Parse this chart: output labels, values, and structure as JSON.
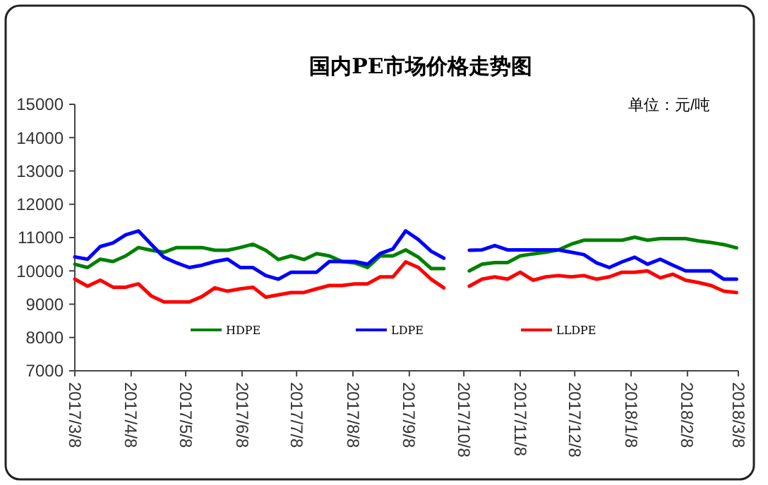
{
  "chart_data": {
    "type": "line",
    "title": "国内PE市场价格走势图",
    "annotations": [
      "单位：元/吨"
    ],
    "x": [
      "2017-03-08",
      "2017-03-15",
      "2017-03-22",
      "2017-03-29",
      "2017-04-05",
      "2017-04-12",
      "2017-04-19",
      "2017-04-26",
      "2017-05-03",
      "2017-05-10",
      "2017-05-17",
      "2017-05-24",
      "2017-05-31",
      "2017-06-07",
      "2017-06-14",
      "2017-06-21",
      "2017-06-28",
      "2017-07-05",
      "2017-07-12",
      "2017-07-19",
      "2017-07-26",
      "2017-08-02",
      "2017-08-09",
      "2017-08-16",
      "2017-08-23",
      "2017-08-30",
      "2017-09-06",
      "2017-09-13",
      "2017-09-20",
      "2017-09-27",
      "2017-10-04",
      "2017-10-11",
      "2017-10-18",
      "2017-10-25",
      "2017-11-01",
      "2017-11-08",
      "2017-11-15",
      "2017-11-22",
      "2017-11-29",
      "2017-12-06",
      "2017-12-13",
      "2017-12-20",
      "2017-12-27",
      "2018-01-03",
      "2018-01-10",
      "2018-01-17",
      "2018-01-24",
      "2018-01-31",
      "2018-02-07",
      "2018-02-14",
      "2018-02-21",
      "2018-02-28",
      "2018-03-07"
    ],
    "series": [
      {
        "name": "HDPE",
        "color": "#008000",
        "values": [
          10200,
          10100,
          10350,
          10280,
          10450,
          10700,
          10620,
          10560,
          10700,
          10700,
          10700,
          10620,
          10620,
          10700,
          10800,
          10620,
          10340,
          10450,
          10340,
          10520,
          10450,
          10280,
          10240,
          10100,
          10450,
          10450,
          10630,
          10410,
          10070,
          10070,
          null,
          10000,
          10200,
          10250,
          10250,
          10450,
          10510,
          10560,
          10630,
          10800,
          10920,
          10920,
          10920,
          10920,
          11010,
          10920,
          10970,
          10970,
          10970,
          10900,
          10850,
          10790,
          10690
        ]
      },
      {
        "name": "LDPE",
        "color": "#0000ff",
        "values": [
          10420,
          10350,
          10730,
          10840,
          11080,
          11200,
          10800,
          10410,
          10240,
          10100,
          10170,
          10280,
          10350,
          10100,
          10100,
          9860,
          9750,
          9960,
          9960,
          9960,
          10280,
          10280,
          10280,
          10200,
          10520,
          10660,
          11200,
          10940,
          10590,
          10380,
          null,
          10620,
          10630,
          10760,
          10630,
          10630,
          10630,
          10630,
          10630,
          10560,
          10490,
          10240,
          10100,
          10270,
          10410,
          10200,
          10350,
          10170,
          10000,
          10000,
          10000,
          9750,
          9750
        ]
      },
      {
        "name": "LLDPE",
        "color": "#ff0000",
        "values": [
          9750,
          9540,
          9720,
          9510,
          9510,
          9610,
          9250,
          9070,
          9070,
          9070,
          9230,
          9490,
          9390,
          9460,
          9510,
          9210,
          9280,
          9350,
          9350,
          9460,
          9560,
          9560,
          9610,
          9610,
          9820,
          9820,
          10270,
          10100,
          9750,
          9490,
          null,
          9540,
          9750,
          9820,
          9750,
          9960,
          9720,
          9820,
          9860,
          9820,
          9860,
          9750,
          9820,
          9960,
          9960,
          10000,
          9790,
          9900,
          9720,
          9650,
          9560,
          9390,
          9350
        ]
      }
    ],
    "xlim": [
      "2017-03-08",
      "2018-03-08"
    ],
    "xticks": [
      {
        "value": "2017-03-08",
        "label": "2017/3/8"
      },
      {
        "value": "2017-04-08",
        "label": "2017/4/8"
      },
      {
        "value": "2017-05-08",
        "label": "2017/5/8"
      },
      {
        "value": "2017-06-08",
        "label": "2017/6/8"
      },
      {
        "value": "2017-07-08",
        "label": "2017/7/8"
      },
      {
        "value": "2017-08-08",
        "label": "2017/8/8"
      },
      {
        "value": "2017-09-08",
        "label": "2017/9/8"
      },
      {
        "value": "2017-10-08",
        "label": "2017/10/8"
      },
      {
        "value": "2017-11-08",
        "label": "2017/11/8"
      },
      {
        "value": "2017-12-08",
        "label": "2017/12/8"
      },
      {
        "value": "2018-01-08",
        "label": "2018/1/8"
      },
      {
        "value": "2018-02-08",
        "label": "2018/2/8"
      },
      {
        "value": "2018-03-08",
        "label": "2018/3/8"
      }
    ],
    "ylim": [
      7000,
      15000
    ],
    "yticks": [
      7000,
      8000,
      9000,
      10000,
      11000,
      12000,
      13000,
      14000,
      15000
    ],
    "grid": false,
    "legend": "bottom",
    "marker": "none",
    "line_style": "solid"
  }
}
